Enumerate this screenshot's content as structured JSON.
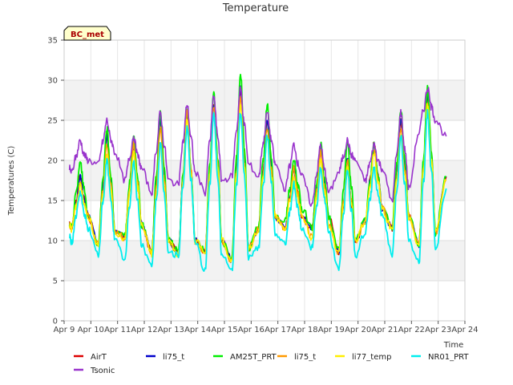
{
  "chart_data": {
    "type": "line",
    "title": "Temperature",
    "xlabel": "Time",
    "ylabel": "Temperatures (C)",
    "station_label": "BC_met",
    "ylim": [
      0,
      35
    ],
    "yticks": [
      0,
      5,
      10,
      15,
      20,
      25,
      30,
      35
    ],
    "xlim": [
      9,
      24
    ],
    "xtick_values": [
      9,
      10,
      11,
      12,
      13,
      14,
      15,
      16,
      17,
      18,
      19,
      20,
      21,
      22,
      23,
      24
    ],
    "xtick_labels": [
      "Apr 9",
      "Apr 10",
      "Apr 11",
      "Apr 12",
      "Apr 13",
      "Apr 14",
      "Apr 15",
      "Apr 16",
      "Apr 17",
      "Apr 18",
      "Apr 19",
      "Apr 20",
      "Apr 21",
      "Apr 22",
      "Apr 23",
      "Apr 24"
    ],
    "grid": true,
    "banded_background": true,
    "legend_position": "bottom",
    "daily_min_max": {
      "days": [
        10,
        11,
        12,
        13,
        14,
        15,
        16,
        17,
        18,
        19,
        20,
        21,
        22,
        23
      ],
      "max": [
        18,
        24,
        23,
        25,
        26,
        28,
        30,
        26,
        20,
        22,
        22,
        22,
        26,
        29
      ],
      "min": [
        11,
        8,
        9,
        8,
        7,
        9,
        6,
        10,
        11,
        10,
        7,
        11,
        9,
        8
      ]
    },
    "series": [
      {
        "name": "AirT",
        "color": "#dd0000",
        "width": 1.6,
        "offset": 0.0,
        "max": [
          18,
          23,
          22,
          25,
          26,
          27,
          29,
          25,
          19,
          21,
          19,
          22,
          25,
          28
        ],
        "min": [
          11,
          9,
          10,
          8,
          8,
          8,
          7,
          11,
          11,
          11,
          8,
          12,
          11,
          9
        ],
        "end": 18
      },
      {
        "name": "li75_t",
        "color": "#0000cc",
        "width": 1.4,
        "offset": 0.1,
        "max": [
          18,
          23,
          22,
          25,
          26,
          27,
          29,
          25,
          19,
          21,
          20,
          22,
          25,
          28
        ],
        "min": [
          11,
          9,
          10,
          8,
          8,
          8,
          7,
          11,
          11,
          11,
          8,
          12,
          11,
          9
        ],
        "end": 18
      },
      {
        "name": "AM25T_PRT",
        "color": "#00ee00",
        "width": 1.8,
        "offset": 0.3,
        "max": [
          20,
          24,
          23,
          26,
          26,
          28.5,
          31,
          27,
          20,
          22,
          22.5,
          22,
          26.5,
          29
        ],
        "min": [
          11,
          9,
          10,
          8,
          8,
          8,
          7,
          11,
          12,
          11,
          8,
          12,
          11,
          9
        ],
        "end": 18
      },
      {
        "name": "li75_t",
        "color": "#ff9900",
        "width": 1.4,
        "offset": -0.2,
        "max": [
          17,
          22,
          22,
          24,
          26,
          27,
          28,
          24,
          19,
          21,
          20,
          21,
          24,
          27
        ],
        "min": [
          11,
          9,
          10,
          8,
          8,
          8,
          7,
          11,
          11,
          10,
          8,
          12,
          11,
          9
        ],
        "end": 17.5
      },
      {
        "name": "li77_temp",
        "color": "#ffee00",
        "width": 1.6,
        "offset": -0.3,
        "max": [
          17,
          21,
          21,
          22,
          25,
          26,
          27,
          23,
          18,
          20,
          19,
          21,
          23,
          27
        ],
        "min": [
          11,
          9,
          10,
          8,
          8,
          8,
          7,
          11,
          11,
          10,
          8,
          12,
          11,
          9
        ],
        "end": 17.5
      },
      {
        "name": "NR01_PRT",
        "color": "#00eeee",
        "width": 1.8,
        "offset": -0.6,
        "max": [
          16,
          20,
          20,
          22,
          24,
          26,
          26,
          23,
          17,
          19,
          19,
          19,
          23,
          26
        ],
        "min": [
          9.5,
          8,
          7.5,
          6.5,
          8,
          6,
          6,
          9,
          9.5,
          9,
          6,
          11,
          8,
          7
        ],
        "end": 16.5
      },
      {
        "name": "Tsonic",
        "color": "#9933cc",
        "width": 1.6,
        "offset": 0.0,
        "max": [
          22.5,
          25,
          23,
          26,
          27,
          28,
          29,
          26,
          22,
          22,
          22.5,
          22,
          26,
          29
        ],
        "min": [
          18,
          19,
          17,
          15.5,
          16.5,
          15.5,
          17.5,
          17.5,
          16,
          14,
          18,
          17,
          14.5,
          23
        ],
        "end": 23
      }
    ]
  }
}
